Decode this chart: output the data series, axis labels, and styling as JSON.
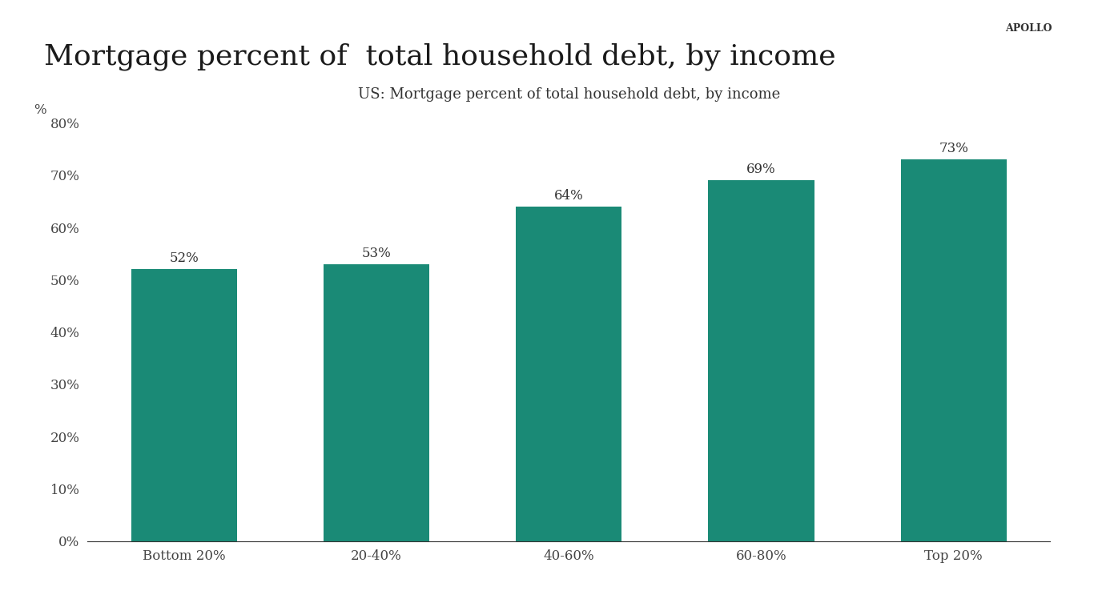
{
  "title": "Mortgage percent of  total household debt, by income",
  "chart_title": "US: Mortgage percent of total household debt, by income",
  "apollo_label": "APOLLO",
  "categories": [
    "Bottom 20%",
    "20-40%",
    "40-60%",
    "60-80%",
    "Top 20%"
  ],
  "values": [
    52,
    53,
    64,
    69,
    73
  ],
  "bar_color": "#1a8a76",
  "background_color": "#ffffff",
  "ylabel_unit": "%",
  "ylim": [
    0,
    80
  ],
  "yticks": [
    0,
    10,
    20,
    30,
    40,
    50,
    60,
    70,
    80
  ],
  "ytick_labels": [
    "0%",
    "10%",
    "20%",
    "30%",
    "40%",
    "50%",
    "60%",
    "70%",
    "80%"
  ],
  "title_fontsize": 26,
  "chart_title_fontsize": 13,
  "tick_fontsize": 12,
  "label_fontsize": 12,
  "bar_label_fontsize": 12,
  "apollo_fontsize": 9
}
